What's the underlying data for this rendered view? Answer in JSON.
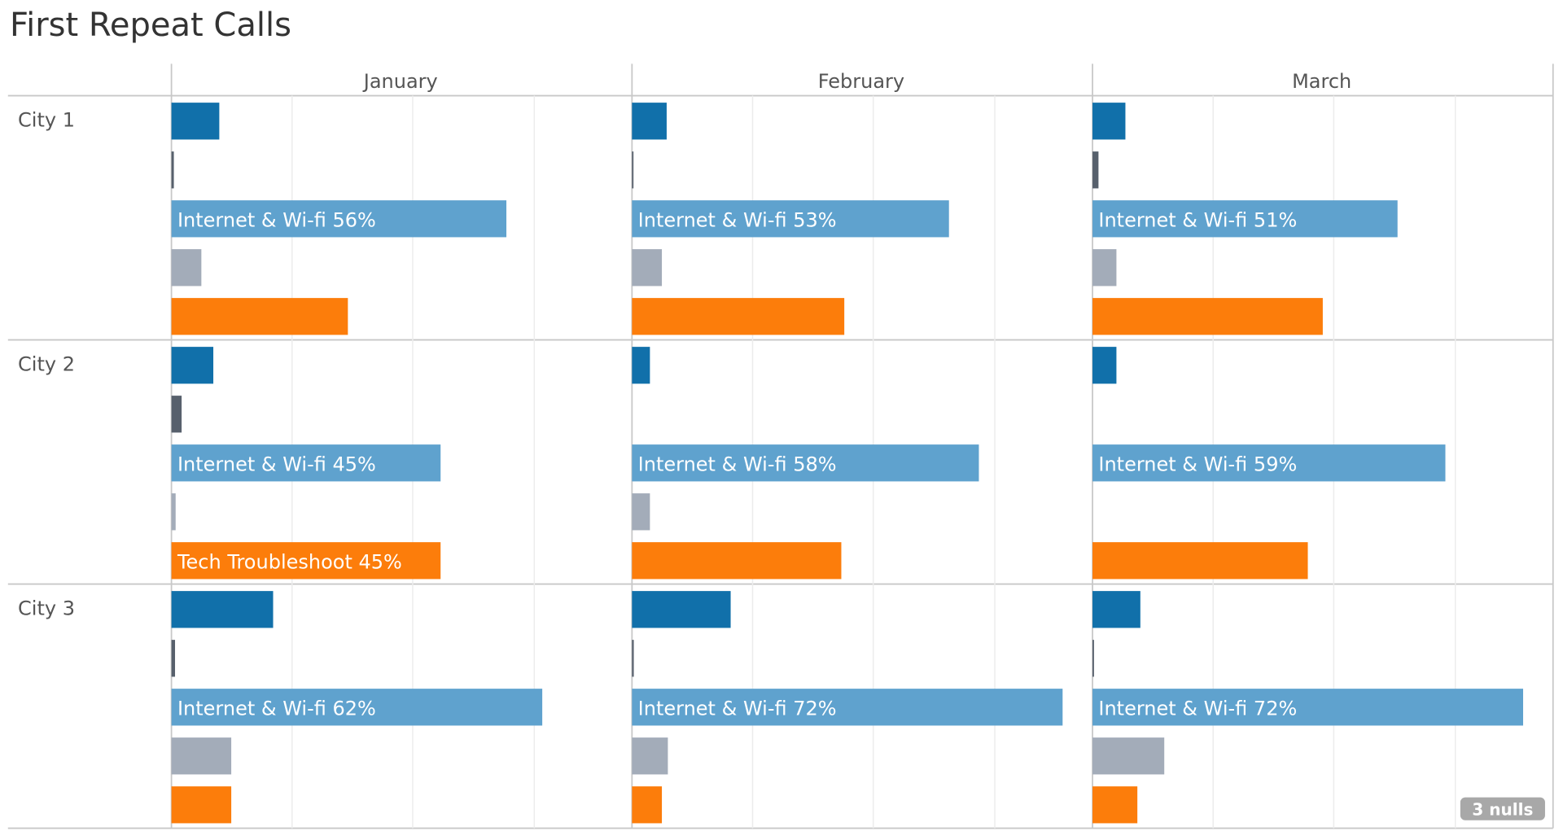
{
  "chart_data": {
    "type": "bar",
    "title": "First Repeat Calls",
    "columns": [
      "January",
      "February",
      "March"
    ],
    "rows": [
      "City 1",
      "City 2",
      "City 3"
    ],
    "xlim": [
      0,
      75
    ],
    "series_colors": [
      "#1170aa",
      "#57606c",
      "#5fa2ce",
      "#a3acb9",
      "#fc7d0b"
    ],
    "values": [
      [
        [
          8,
          0.4,
          56,
          5,
          29.5
        ],
        [
          5.8,
          0.1,
          53,
          5,
          35.5
        ],
        [
          5.5,
          1,
          51,
          4,
          38.5
        ]
      ],
      [
        [
          7,
          1.7,
          45,
          0.7,
          45
        ],
        [
          3,
          0,
          58,
          3,
          35
        ],
        [
          4,
          0,
          59,
          0,
          36
        ]
      ],
      [
        [
          17,
          0.6,
          62,
          10,
          10
        ],
        [
          16.5,
          0.3,
          72,
          6,
          5
        ],
        [
          8,
          0.2,
          72,
          12,
          7.5
        ]
      ]
    ],
    "labels": [
      [
        "",
        "",
        "Internet & Wi-fi 56%",
        "",
        ""
      ],
      [
        "",
        "",
        "Internet & Wi-fi 53%",
        "",
        ""
      ],
      [
        "",
        "",
        "Internet & Wi-fi 51%",
        "",
        ""
      ],
      [
        "",
        "",
        "Internet & Wi-fi 45%",
        "",
        "Tech Troubleshoot 45%"
      ],
      [
        "",
        "",
        "Internet & Wi-fi 58%",
        "",
        ""
      ],
      [
        "",
        "",
        "Internet & Wi-fi 59%",
        "",
        ""
      ],
      [
        "",
        "",
        "Internet & Wi-fi 62%",
        "",
        ""
      ],
      [
        "",
        "",
        "Internet & Wi-fi 72%",
        "",
        ""
      ],
      [
        "",
        "",
        "Internet & Wi-fi 72%",
        "",
        ""
      ]
    ],
    "nulls_indicator": "3 nulls",
    "grid": true
  }
}
